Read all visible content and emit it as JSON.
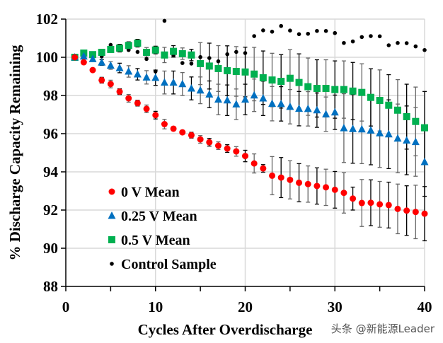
{
  "chart_data": {
    "type": "scatter",
    "xlabel": "Cycles After Overdischarge",
    "ylabel": "% Discharge Capacity Remaining",
    "xlim": [
      0,
      40
    ],
    "ylim": [
      88,
      102
    ],
    "xticks": [
      0,
      10,
      20,
      30,
      40
    ],
    "yticks": [
      88,
      90,
      92,
      94,
      96,
      98,
      100,
      102
    ],
    "grid": true,
    "legend_placement": "bottom-left",
    "x": [
      1,
      2,
      3,
      4,
      5,
      6,
      7,
      8,
      9,
      10,
      11,
      12,
      13,
      14,
      15,
      16,
      17,
      18,
      19,
      20,
      21,
      22,
      23,
      24,
      25,
      26,
      27,
      28,
      29,
      30,
      31,
      32,
      33,
      34,
      35,
      36,
      37,
      38,
      39,
      40
    ],
    "series": [
      {
        "name": "0 V Mean",
        "marker": "circle",
        "color": "#ff0000",
        "values": [
          100,
          99.74,
          99.33,
          98.8,
          98.6,
          98.2,
          97.85,
          97.6,
          97.3,
          96.97,
          96.5,
          96.26,
          96.07,
          95.92,
          95.7,
          95.55,
          95.37,
          95.22,
          95.07,
          94.83,
          94.44,
          94.18,
          93.8,
          93.7,
          93.58,
          93.43,
          93.36,
          93.26,
          93.19,
          93.06,
          92.9,
          92.6,
          92.37,
          92.38,
          92.3,
          92.26,
          92.06,
          91.97,
          91.9,
          91.81
        ],
        "errors": [
          0,
          0.05,
          0.05,
          0.15,
          0.2,
          0.15,
          0.2,
          0.15,
          0.2,
          0.2,
          0.25,
          0.1,
          0.1,
          0.15,
          0.2,
          0.2,
          0.2,
          0.2,
          0.25,
          0.3,
          0.5,
          0.2,
          1.0,
          1.05,
          1.0,
          1.0,
          0.95,
          0.95,
          0.95,
          0.96,
          1.06,
          0.6,
          1.23,
          1.2,
          1.2,
          1.2,
          1.3,
          1.3,
          1.4,
          1.42
        ]
      },
      {
        "name": "0.25 V Mean",
        "marker": "triangle",
        "color": "#0070c0",
        "values": [
          100,
          100.05,
          99.91,
          99.73,
          99.57,
          99.44,
          99.26,
          99.11,
          98.95,
          98.93,
          98.68,
          98.68,
          98.6,
          98.37,
          98.27,
          98.06,
          97.79,
          97.75,
          97.54,
          97.79,
          98.01,
          97.85,
          97.57,
          97.56,
          97.41,
          97.31,
          97.3,
          97.23,
          97.02,
          97.12,
          96.29,
          96.25,
          96.23,
          96.17,
          96.03,
          95.97,
          95.75,
          95.65,
          95.57,
          94.52
        ],
        "errors": [
          0,
          0.05,
          0.1,
          0.15,
          0.2,
          0.25,
          0.3,
          0.3,
          0.35,
          0.4,
          0.6,
          0.6,
          0.6,
          0.6,
          0.7,
          0.7,
          0.8,
          0.8,
          0.8,
          0.8,
          0.85,
          0.9,
          0.9,
          0.9,
          0.9,
          0.9,
          0.9,
          0.9,
          0.9,
          0.9,
          1.8,
          1.8,
          1.8,
          1.8,
          1.8,
          1.8,
          1.8,
          1.8,
          1.8,
          1.8
        ]
      },
      {
        "name": "0.5 V Mean",
        "marker": "square",
        "color": "#00b050",
        "values": [
          100,
          100.22,
          100.14,
          100.26,
          100.41,
          100.48,
          100.62,
          100.74,
          100.26,
          100.38,
          100.12,
          100.31,
          100.19,
          100.12,
          99.67,
          99.54,
          99.41,
          99.3,
          99.26,
          99.23,
          99.12,
          98.93,
          98.81,
          98.74,
          98.9,
          98.68,
          98.46,
          98.37,
          98.37,
          98.31,
          98.31,
          98.23,
          98.16,
          97.9,
          97.74,
          97.49,
          97.23,
          96.89,
          96.64,
          96.31
        ],
        "errors": [
          0,
          0.05,
          0.1,
          0.15,
          0.15,
          0.2,
          0.2,
          0.2,
          0.25,
          0.2,
          0.4,
          0.3,
          0.3,
          0.3,
          1.1,
          1.2,
          1.2,
          1.3,
          1.3,
          1.3,
          1.4,
          1.4,
          1.4,
          1.4,
          1.5,
          1.5,
          1.5,
          1.5,
          1.5,
          1.5,
          1.5,
          1.5,
          1.5,
          1.5,
          1.6,
          1.6,
          1.6,
          1.7,
          1.8,
          1.9
        ]
      },
      {
        "name": "Control Sample",
        "marker": "dot",
        "color": "#000000",
        "values": [
          100,
          100.12,
          100.11,
          100.04,
          100.65,
          100.56,
          100.38,
          100.28,
          99.91,
          99.26,
          101.91,
          100.1,
          99.7,
          99.67,
          100.01,
          99.96,
          99.79,
          100.16,
          100.28,
          100.22,
          101.11,
          101.41,
          101.34,
          101.64,
          101.4,
          101.21,
          101.23,
          101.38,
          101.38,
          101.27,
          100.75,
          100.83,
          101.06,
          101.11,
          101.1,
          100.63,
          100.75,
          100.74,
          100.57,
          100.38
        ]
      }
    ]
  },
  "watermark": "头条 @新能源Leader"
}
